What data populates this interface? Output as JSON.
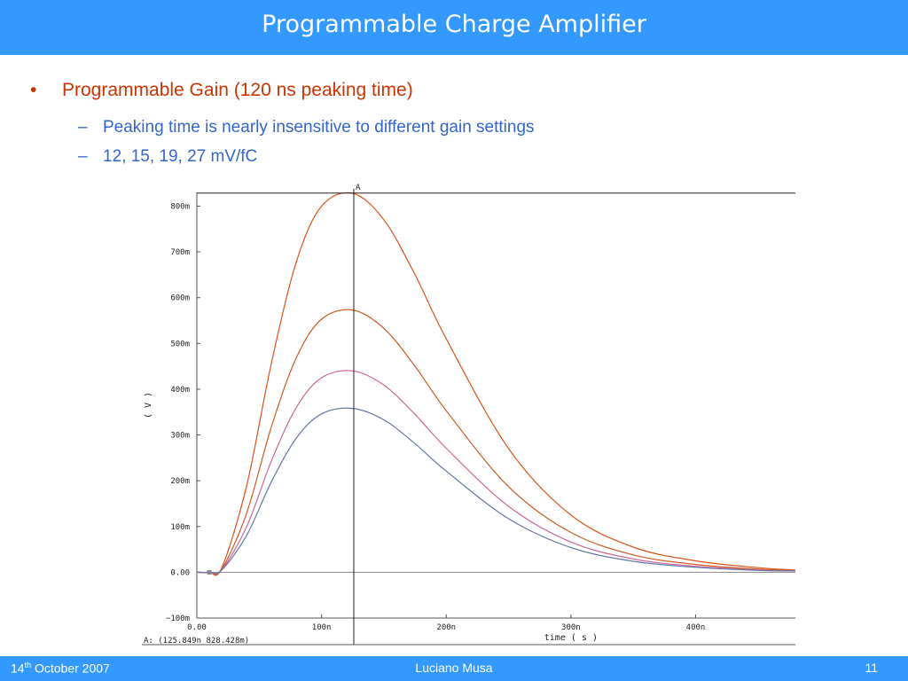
{
  "slide": {
    "title": "Programmable Charge Amplifier",
    "bullet_mark": "•",
    "bullet": "Programmable Gain (120 ns peaking time)",
    "dash": "–",
    "sub_bullets": [
      "Peaking time is nearly insensitive to different gain settings",
      "12, 15, 19, 27 mV/fC"
    ]
  },
  "footer": {
    "date_day": "14",
    "date_sup": "th",
    "date_rest": " October 2007",
    "author": "Luciano Musa",
    "page": "11"
  },
  "colors": {
    "header": "#3399ff",
    "bullet_text": "#cc3300",
    "sub_text": "#3366cc",
    "series": [
      "#d9541a",
      "#cc5a22",
      "#cc6699",
      "#6677aa"
    ]
  },
  "chart_data": {
    "type": "line",
    "xlabel": "time ( s )",
    "ylabel": "( V )",
    "xlim": [
      0,
      4.8e-07
    ],
    "ylim": [
      -0.1,
      0.83
    ],
    "x_ticks": [
      {
        "v": 0,
        "label": "0.00"
      },
      {
        "v": 1e-07,
        "label": "100n"
      },
      {
        "v": 2e-07,
        "label": "200n"
      },
      {
        "v": 3e-07,
        "label": "300n"
      },
      {
        "v": 4e-07,
        "label": "400n"
      }
    ],
    "y_ticks": [
      {
        "v": -0.1,
        "label": "−100m"
      },
      {
        "v": 0,
        "label": "0.00"
      },
      {
        "v": 0.1,
        "label": "100m"
      },
      {
        "v": 0.2,
        "label": "200m"
      },
      {
        "v": 0.3,
        "label": "300m"
      },
      {
        "v": 0.4,
        "label": "400m"
      },
      {
        "v": 0.5,
        "label": "500m"
      },
      {
        "v": 0.6,
        "label": "600m"
      },
      {
        "v": 0.7,
        "label": "700m"
      },
      {
        "v": 0.8,
        "label": "800m"
      }
    ],
    "x": [
      0,
      1e-08,
      2e-08,
      4e-08,
      6e-08,
      8e-08,
      1e-07,
      1.25e-07,
      1.5e-07,
      1.75e-07,
      2e-07,
      2.5e-07,
      3e-07,
      3.5e-07,
      4e-07,
      4.5e-07,
      4.8e-07
    ],
    "series": [
      {
        "values": [
          0,
          0,
          0.01,
          0.19,
          0.46,
          0.68,
          0.8,
          0.828,
          0.77,
          0.65,
          0.51,
          0.27,
          0.125,
          0.055,
          0.025,
          0.01,
          0.005
        ]
      },
      {
        "values": [
          0,
          0,
          0.007,
          0.13,
          0.32,
          0.47,
          0.553,
          0.573,
          0.533,
          0.45,
          0.353,
          0.187,
          0.087,
          0.038,
          0.017,
          0.007,
          0.004
        ]
      },
      {
        "values": [
          0,
          0,
          0.006,
          0.1,
          0.245,
          0.361,
          0.425,
          0.44,
          0.409,
          0.345,
          0.271,
          0.144,
          0.066,
          0.029,
          0.013,
          0.005,
          0.003
        ]
      },
      {
        "values": [
          0,
          0,
          0.005,
          0.081,
          0.199,
          0.294,
          0.346,
          0.358,
          0.333,
          0.281,
          0.221,
          0.117,
          0.054,
          0.024,
          0.011,
          0.004,
          0.003
        ]
      }
    ],
    "marker": {
      "label": "A",
      "x": 1.25849e-07,
      "y": 0.828428,
      "readout": "A: (125.849n  828.428m)"
    }
  }
}
